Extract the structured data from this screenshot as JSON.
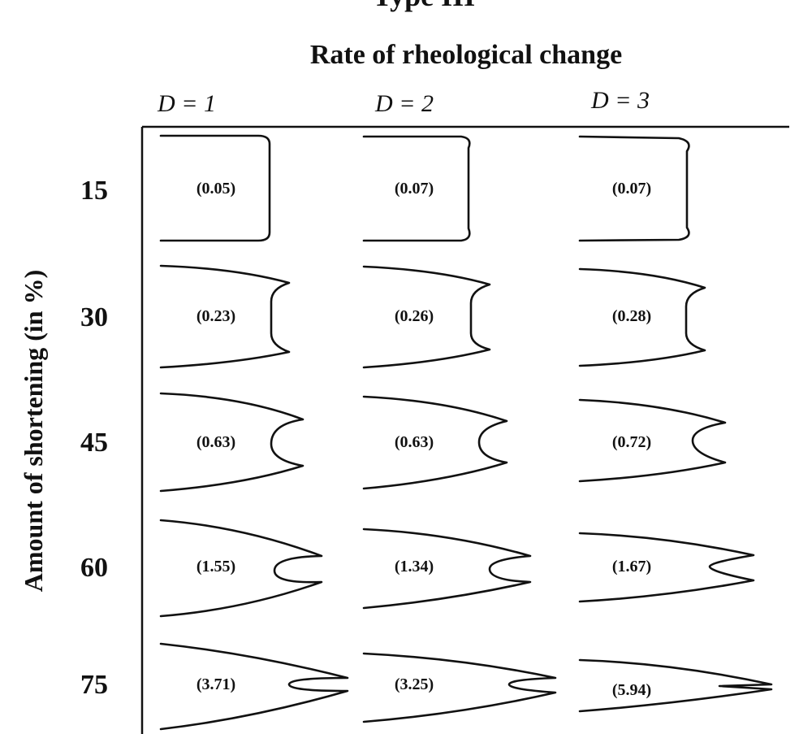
{
  "title": "Type III",
  "heading": "Rate of rheological change",
  "y_axis_label": "Amount of shortening (in %)",
  "columns": [
    {
      "var": "D",
      "label": "D = 1"
    },
    {
      "var": "D",
      "label": "D = 2"
    },
    {
      "var": "D",
      "label": "D = 3"
    }
  ],
  "rows": [
    {
      "shortening": "15",
      "values": [
        "(0.05)",
        "(0.07)",
        "(0.07)"
      ]
    },
    {
      "shortening": "30",
      "values": [
        "(0.23)",
        "(0.26)",
        "(0.28)"
      ]
    },
    {
      "shortening": "45",
      "values": [
        "(0.63)",
        "(0.63)",
        "(0.72)"
      ]
    },
    {
      "shortening": "60",
      "values": [
        "(1.55)",
        "(1.34)",
        "(1.67)"
      ]
    },
    {
      "shortening": "75",
      "values": [
        "(3.71)",
        "(3.25)",
        "(5.94)"
      ]
    }
  ]
}
